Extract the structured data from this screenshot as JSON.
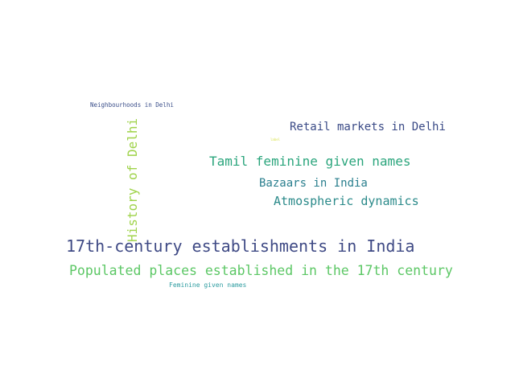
{
  "words": [
    {
      "text": "Neighbourhoods in Delhi",
      "color": "#3b4f8a"
    },
    {
      "text": "Retail markets in Delhi",
      "color": "#3a4a86"
    },
    {
      "text": "Tamil feminine given names",
      "color": "#2aa57c"
    },
    {
      "text": "History of Delhi",
      "color": "#9fd34a"
    },
    {
      "text": "Bazaars in India",
      "color": "#2a7f8e"
    },
    {
      "text": "Atmospheric dynamics",
      "color": "#2b8a8a"
    },
    {
      "text": "17th-century establishments in India",
      "color": "#3f4a85"
    },
    {
      "text": "Populated places established in the 17th century",
      "color": "#5cc765"
    },
    {
      "text": "Feminine given names",
      "color": "#2d9ca0"
    },
    {
      "text": "label",
      "color": "#d8e24a"
    }
  ]
}
